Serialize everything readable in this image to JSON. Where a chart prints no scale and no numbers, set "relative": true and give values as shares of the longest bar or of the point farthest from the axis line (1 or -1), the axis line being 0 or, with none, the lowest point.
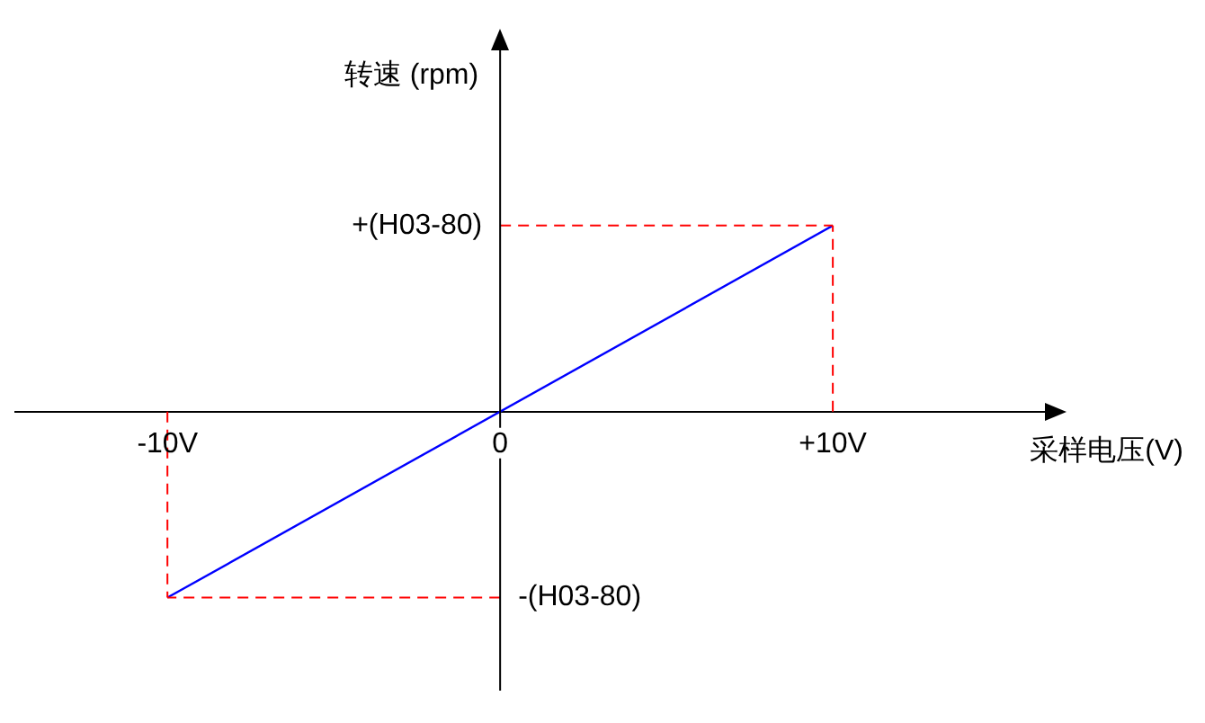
{
  "chart_data": {
    "type": "line",
    "xlabel": "采样电压(V)",
    "ylabel": "转速 (rpm)",
    "x": [
      -10,
      10
    ],
    "series": [
      {
        "color": "#0000ff",
        "values": [
          -1,
          1
        ]
      }
    ],
    "xlim": [
      -14.6,
      16.7
    ],
    "xticks": [
      {
        "value": -10,
        "label": "-10V"
      },
      {
        "value": 0,
        "label": "0"
      },
      {
        "value": 10,
        "label": "+10V"
      }
    ],
    "relative": true,
    "ref_lines": [
      {
        "axis": "x",
        "value": -10,
        "color": "#ff0000",
        "line_style": "dashed"
      },
      {
        "axis": "x",
        "value": 10,
        "color": "#ff0000",
        "line_style": "dashed"
      },
      {
        "axis": "y",
        "value": 1,
        "label": "+(H03-80)",
        "color": "#ff0000",
        "line_style": "dashed"
      },
      {
        "axis": "y",
        "value": -1,
        "label": "-(H03-80)",
        "color": "#ff0000",
        "line_style": "dashed"
      }
    ],
    "legend": false,
    "marker": "none",
    "line_style": "solid"
  }
}
